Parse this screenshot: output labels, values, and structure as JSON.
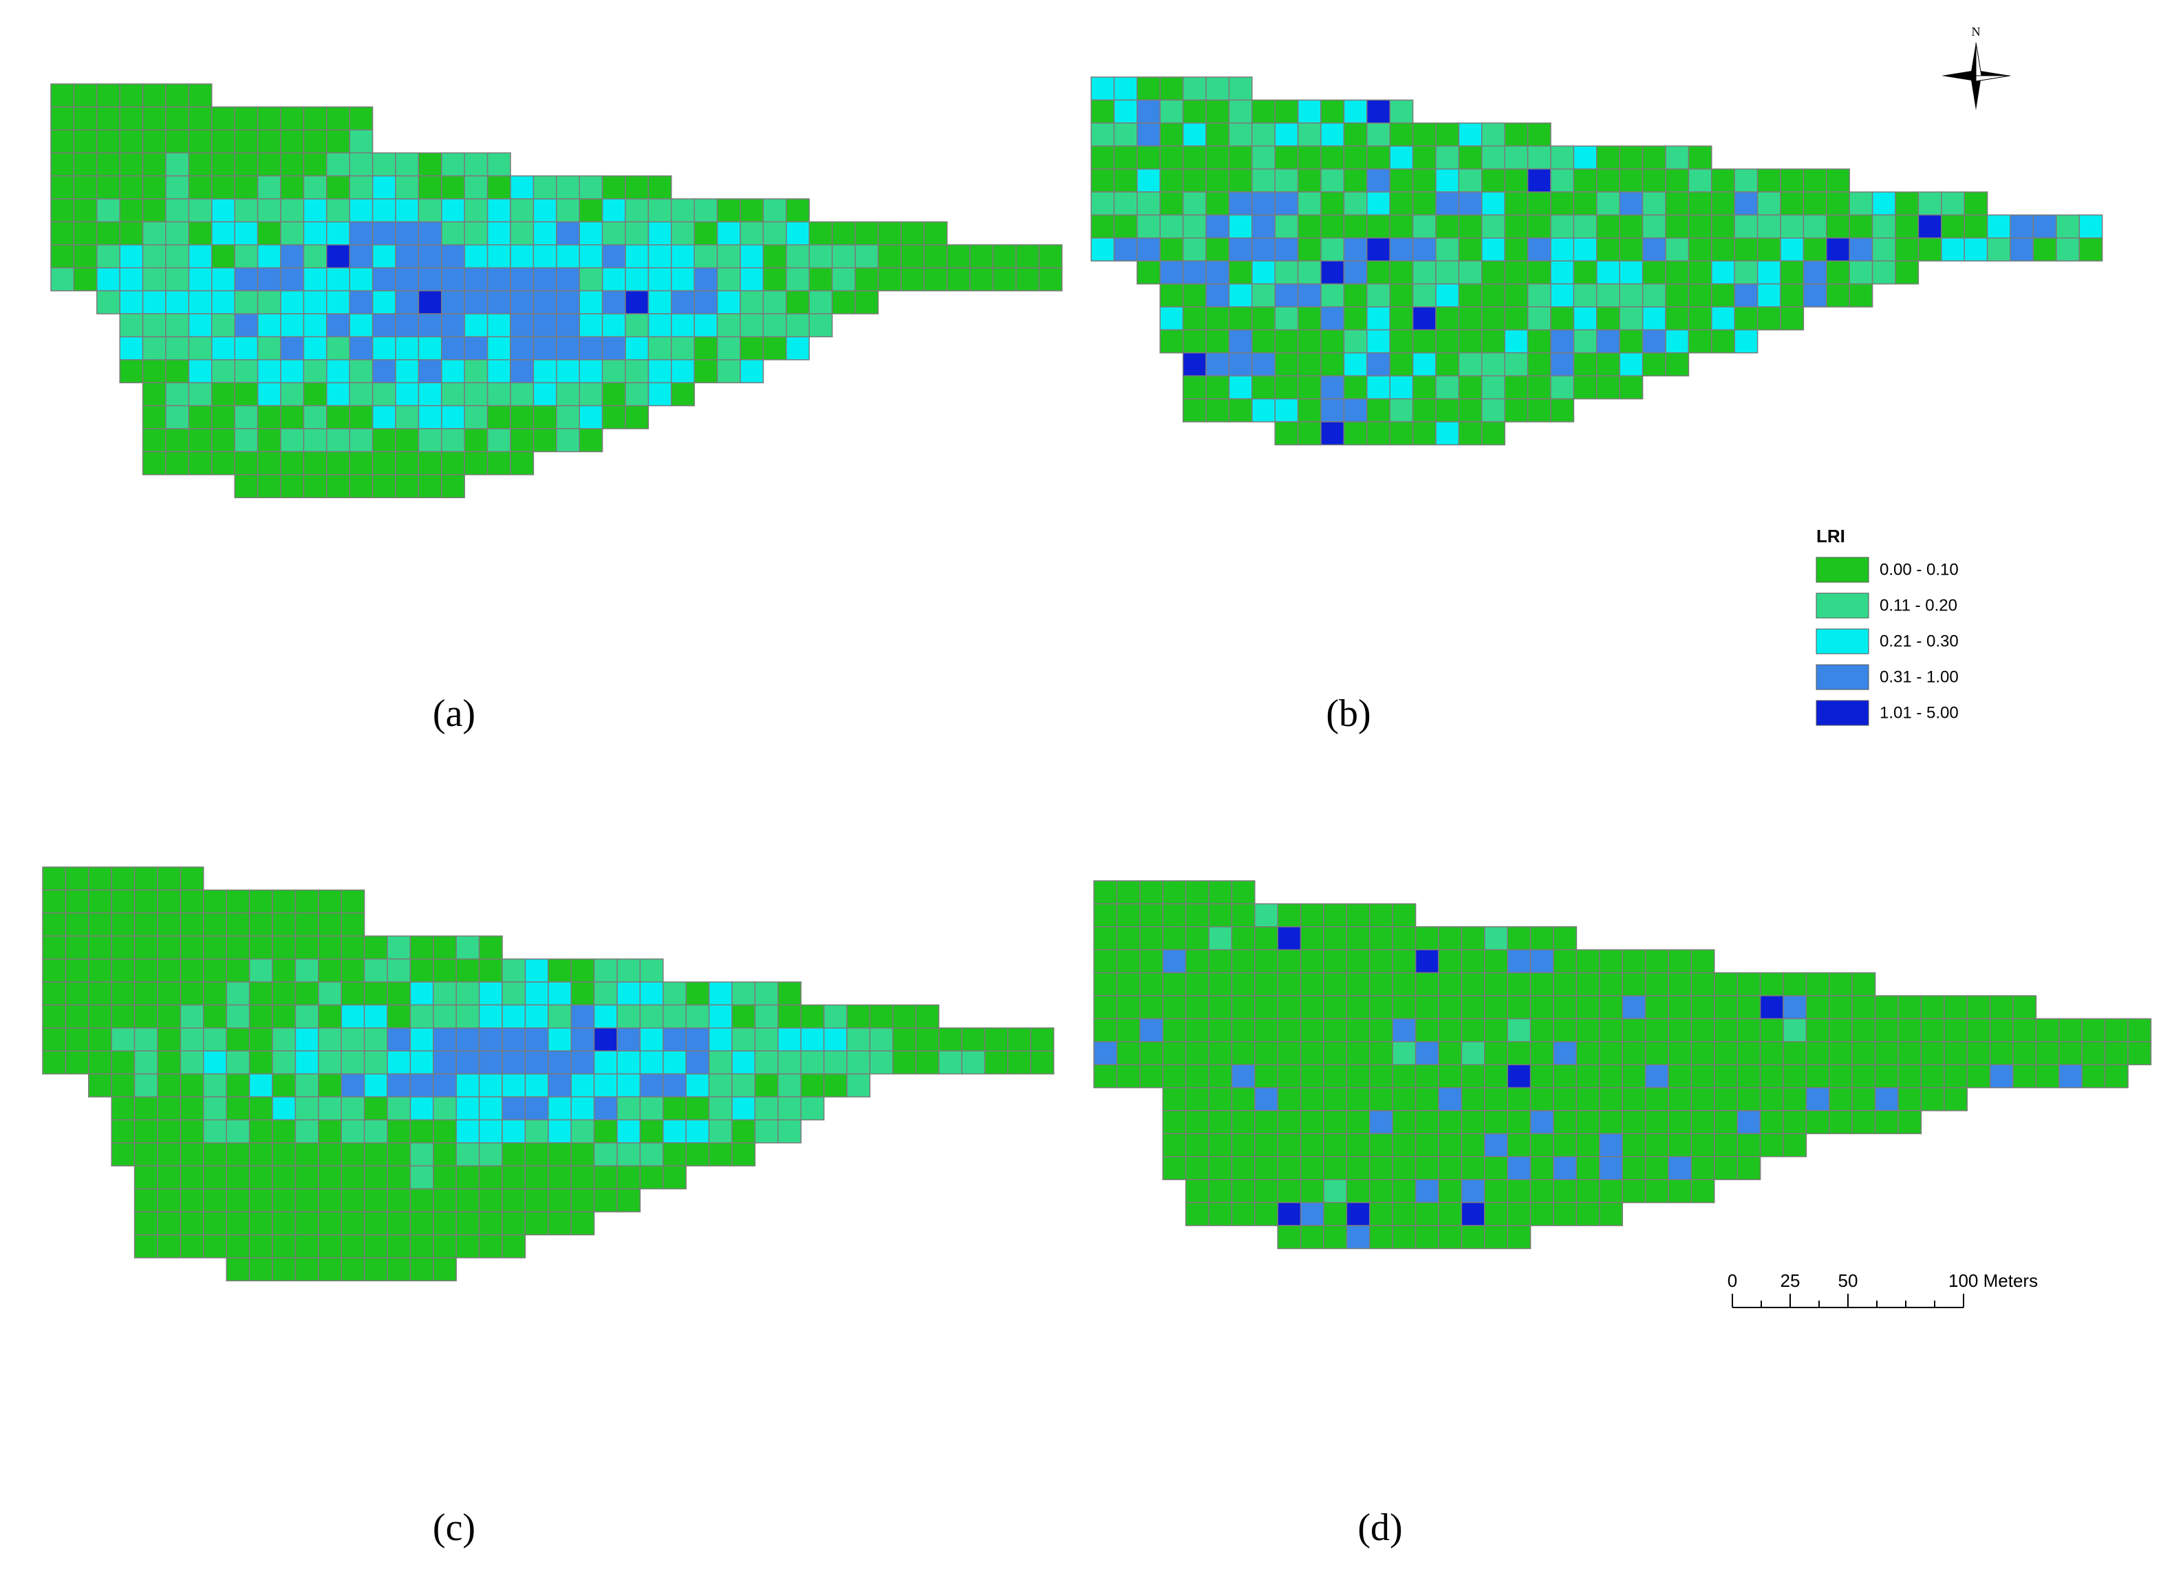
{
  "panels": [
    {
      "label": "(a)"
    },
    {
      "label": "(b)"
    },
    {
      "label": "(c)"
    },
    {
      "label": "(d)"
    }
  ],
  "legend": {
    "title": "LRI",
    "items": [
      {
        "label": "0.00 - 0.10",
        "color": "#1ec41e"
      },
      {
        "label": "0.11 - 0.20",
        "color": "#33d98b"
      },
      {
        "label": "0.21 - 0.30",
        "color": "#00eef0"
      },
      {
        "label": "0.31 - 1.00",
        "color": "#3a86e6"
      },
      {
        "label": "1.01 - 5.00",
        "color": "#0a1fd6"
      }
    ]
  },
  "north": "N",
  "scale_bar": {
    "labels": [
      "0",
      "25",
      "50",
      "100 Meters"
    ]
  }
}
